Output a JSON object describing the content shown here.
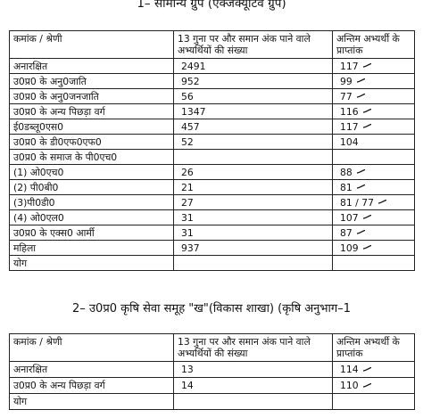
{
  "section1": {
    "heading": "1– सामान्य ग्रुप (एक्जक्यूटिव ग्रुप)",
    "headers": {
      "category": "कमांक / श्रेणी",
      "count": "13 गुना पर और समान अंक पाने वाले अभ्यर्थियों की संख्या",
      "marks": "अन्तिम अभ्यर्थी के प्राप्तांक"
    },
    "rows": [
      {
        "category": "अनारक्षित",
        "count": "2491",
        "marks": "117",
        "tick": true
      },
      {
        "category": "उ0प्र0 के अनु0जाति",
        "count": "952",
        "marks": "99",
        "tick": true
      },
      {
        "category": "उ0प्र0 के अनु0जनजाति",
        "count": "56",
        "marks": "77",
        "tick": true
      },
      {
        "category": "उ0प्र0 के अन्य पिछड़ा वर्ग",
        "count": "1347",
        "marks": "116",
        "tick": true
      },
      {
        "category": "ई0डब्लू0एस0",
        "count": "457",
        "marks": "117",
        "tick": true
      },
      {
        "category": "उ0प्र0 के डी0एफ0एफ0",
        "count": "52",
        "marks": "104",
        "tick": false
      },
      {
        "category": "उ0प्र0 के समाज के पी0एच0",
        "count": "",
        "marks": "",
        "tick": false
      },
      {
        "category": "(1) ओ0एच0",
        "count": "26",
        "marks": "88",
        "tick": true
      },
      {
        "category": "(2) पी0बी0",
        "count": "21",
        "marks": "81",
        "tick": true
      },
      {
        "category": "(3)पी0डी0",
        "count": "27",
        "marks": "81 / 77",
        "tick": true
      },
      {
        "category": "(4) ओ0एल0",
        "count": "31",
        "marks": "107",
        "tick": true
      },
      {
        "category": "उ0प्र0 के एक्स0 आर्मी",
        "count": "31",
        "marks": "87",
        "tick": true
      },
      {
        "category": "महिला",
        "count": "937",
        "marks": "109",
        "tick": true
      },
      {
        "category": "योग",
        "count": "",
        "marks": "",
        "tick": false
      }
    ]
  },
  "section2": {
    "heading": "2– उ0प्र0 कृषि सेवा समूह \"ख\"(विकास शाखा) (कृषि अनुभाग–1",
    "headers": {
      "category": "कमांक / श्रेणी",
      "count": "13 गुना पर और समान अंक पाने वाले अभ्यर्थियों की संख्या",
      "marks": "अन्तिम अभ्यर्थी के प्राप्तांक"
    },
    "rows": [
      {
        "category": "अनारक्षित",
        "count": "13",
        "marks": "114",
        "tick": true
      },
      {
        "category": "उ0प्र0 के अन्य पिछड़ा वर्ग",
        "count": "14",
        "marks": "110",
        "tick": true
      },
      {
        "category": "योग",
        "count": "",
        "marks": "",
        "tick": false
      }
    ]
  }
}
